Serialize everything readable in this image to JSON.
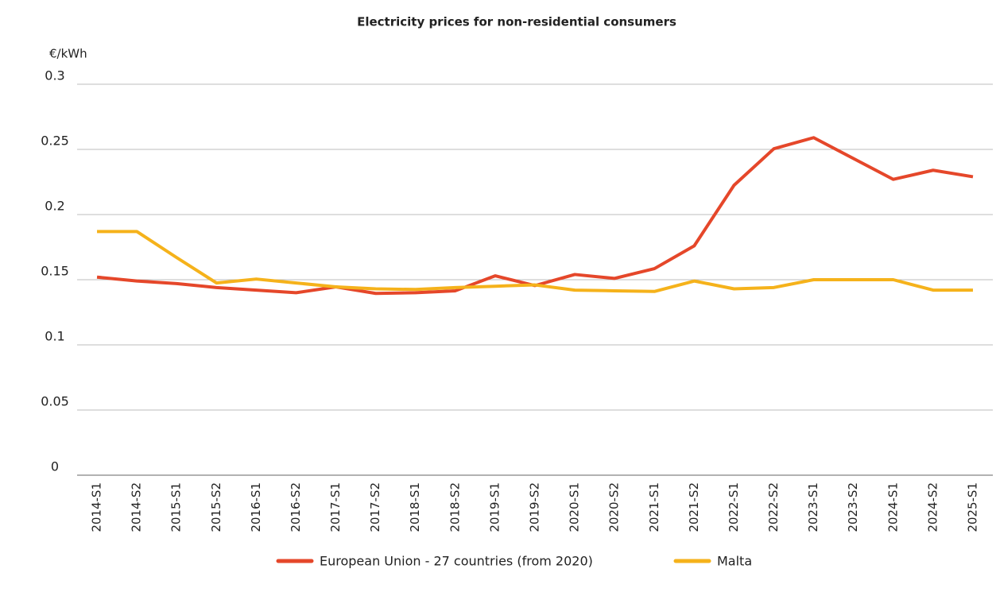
{
  "chart_data": {
    "type": "line",
    "title": "Electricity prices for non-residential consumers",
    "y_label": "€/kWh",
    "categories": [
      "2014-S1",
      "2014-S2",
      "2015-S1",
      "2015-S2",
      "2016-S1",
      "2016-S2",
      "2017-S1",
      "2017-S2",
      "2018-S1",
      "2018-S2",
      "2019-S1",
      "2019-S2",
      "2020-S1",
      "2020-S2",
      "2021-S1",
      "2021-S2",
      "2022-S1",
      "2022-S2",
      "2023-S1",
      "2023-S2",
      "2024-S1",
      "2024-S2",
      "2025-S1"
    ],
    "series": [
      {
        "name": "European Union - 27 countries (from 2020)",
        "color": "#e5472a",
        "values": [
          0.152,
          0.149,
          0.147,
          0.144,
          0.142,
          0.14,
          0.1445,
          0.1395,
          0.14,
          0.1415,
          0.153,
          0.1455,
          0.154,
          0.151,
          0.1585,
          0.176,
          0.2225,
          0.2505,
          0.259,
          0.243,
          0.227,
          0.234,
          0.229
        ]
      },
      {
        "name": "Malta",
        "color": "#f5b21b",
        "values": [
          0.187,
          0.187,
          0.167,
          0.1475,
          0.1505,
          0.1475,
          0.1445,
          0.143,
          0.1425,
          0.144,
          0.145,
          0.146,
          0.142,
          0.1415,
          0.141,
          0.149,
          0.143,
          0.144,
          0.15,
          0.15,
          0.15,
          0.142,
          0.142
        ]
      }
    ],
    "ylim": [
      0,
      0.3
    ],
    "yticks": [
      0,
      0.05,
      0.1,
      0.15,
      0.2,
      0.25,
      0.3
    ],
    "grid": true,
    "legend": "bottom"
  }
}
